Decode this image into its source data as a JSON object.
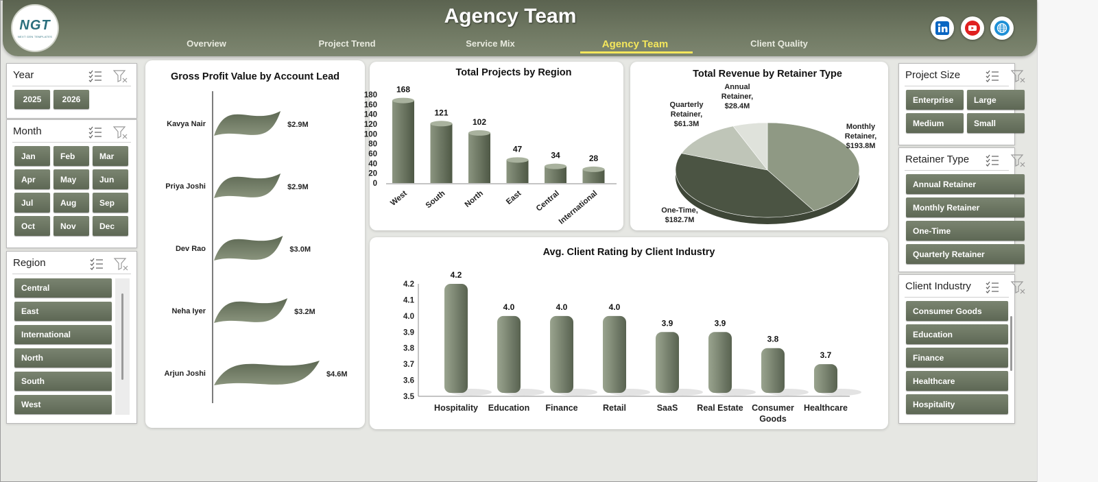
{
  "header": {
    "title": "Agency Team",
    "logo": {
      "main": "NGT",
      "sub": "NEXT GEN TEMPLATES"
    },
    "tabs": [
      {
        "label": "Overview",
        "active": false
      },
      {
        "label": "Project Trend",
        "active": false
      },
      {
        "label": "Service Mix",
        "active": false
      },
      {
        "label": "Agency Team",
        "active": true
      },
      {
        "label": "Client Quality",
        "active": false
      }
    ],
    "social": [
      "linkedin-icon",
      "youtube-icon",
      "website-icon"
    ]
  },
  "slicers": {
    "year": {
      "title": "Year",
      "items": [
        "2025",
        "2026"
      ]
    },
    "month": {
      "title": "Month",
      "items": [
        "Jan",
        "Feb",
        "Mar",
        "Apr",
        "May",
        "Jun",
        "Jul",
        "Aug",
        "Sep",
        "Oct",
        "Nov",
        "Dec"
      ]
    },
    "region": {
      "title": "Region",
      "items": [
        "Central",
        "East",
        "International",
        "North",
        "South",
        "West"
      ]
    },
    "project_size": {
      "title": "Project Size",
      "items": [
        "Enterprise",
        "Large",
        "Medium",
        "Small"
      ]
    },
    "retainer_type": {
      "title": "Retainer Type",
      "items": [
        "Annual Retainer",
        "Monthly Retainer",
        "One-Time",
        "Quarterly Retainer"
      ]
    },
    "client_industry": {
      "title": "Client Industry",
      "items": [
        "Consumer Goods",
        "Education",
        "Finance",
        "Healthcare",
        "Hospitality"
      ]
    }
  },
  "colors": {
    "accent": "#6b7560",
    "header": "#6f7862",
    "active_tab": "#f4e65c"
  },
  "chart_data": [
    {
      "type": "bar",
      "title": "Gross Profit Value by Account Lead",
      "categories": [
        "Kavya Nair",
        "Priya Joshi",
        "Dev Rao",
        "Neha Iyer",
        "Arjun Joshi"
      ],
      "values": [
        2.9,
        2.9,
        3.0,
        3.2,
        4.6
      ],
      "labels": [
        "$2.9M",
        "$2.9M",
        "$3.0M",
        "$3.2M",
        "$4.6M"
      ],
      "orientation": "horizontal"
    },
    {
      "type": "bar",
      "title": "Total Projects by Region",
      "categories": [
        "West",
        "South",
        "North",
        "East",
        "Central",
        "International"
      ],
      "values": [
        168,
        121,
        102,
        47,
        34,
        28
      ],
      "yticks": [
        "0",
        "20",
        "40",
        "60",
        "80",
        "100",
        "120",
        "140",
        "160",
        "180"
      ],
      "ylim": [
        0,
        180
      ]
    },
    {
      "type": "pie",
      "title": "Total Revenue by Retainer Type",
      "slices": [
        {
          "name": "Monthly Retainer",
          "value": 193.8,
          "label": [
            "Monthly",
            "Retainer,",
            "$193.8M"
          ],
          "color": "#8f9984"
        },
        {
          "name": "One-Time",
          "value": 182.7,
          "label": [
            "One-Time,",
            "$182.7M"
          ],
          "color": "#4b5443"
        },
        {
          "name": "Quarterly Retainer",
          "value": 61.3,
          "label": [
            "Quarterly",
            "Retainer,",
            "$61.3M"
          ],
          "color": "#bfc5b8"
        },
        {
          "name": "Annual Retainer",
          "value": 28.4,
          "label": [
            "Annual",
            "Retainer,",
            "$28.4M"
          ],
          "color": "#dfe2db"
        }
      ]
    },
    {
      "type": "bar",
      "title": "Avg. Client Rating by Client Industry",
      "categories": [
        "Hospitality",
        "Education",
        "Finance",
        "Retail",
        "SaaS",
        "Real Estate",
        "Consumer Goods",
        "Healthcare"
      ],
      "values": [
        4.2,
        4.0,
        4.0,
        4.0,
        3.9,
        3.9,
        3.8,
        3.7
      ],
      "labels": [
        "4.2",
        "4.0",
        "4.0",
        "4.0",
        "3.9",
        "3.9",
        "3.8",
        "3.7"
      ],
      "yticks": [
        "3.5",
        "3.6",
        "3.7",
        "3.8",
        "3.9",
        "4.0",
        "4.1",
        "4.2"
      ],
      "ylim": [
        3.5,
        4.2
      ]
    }
  ]
}
